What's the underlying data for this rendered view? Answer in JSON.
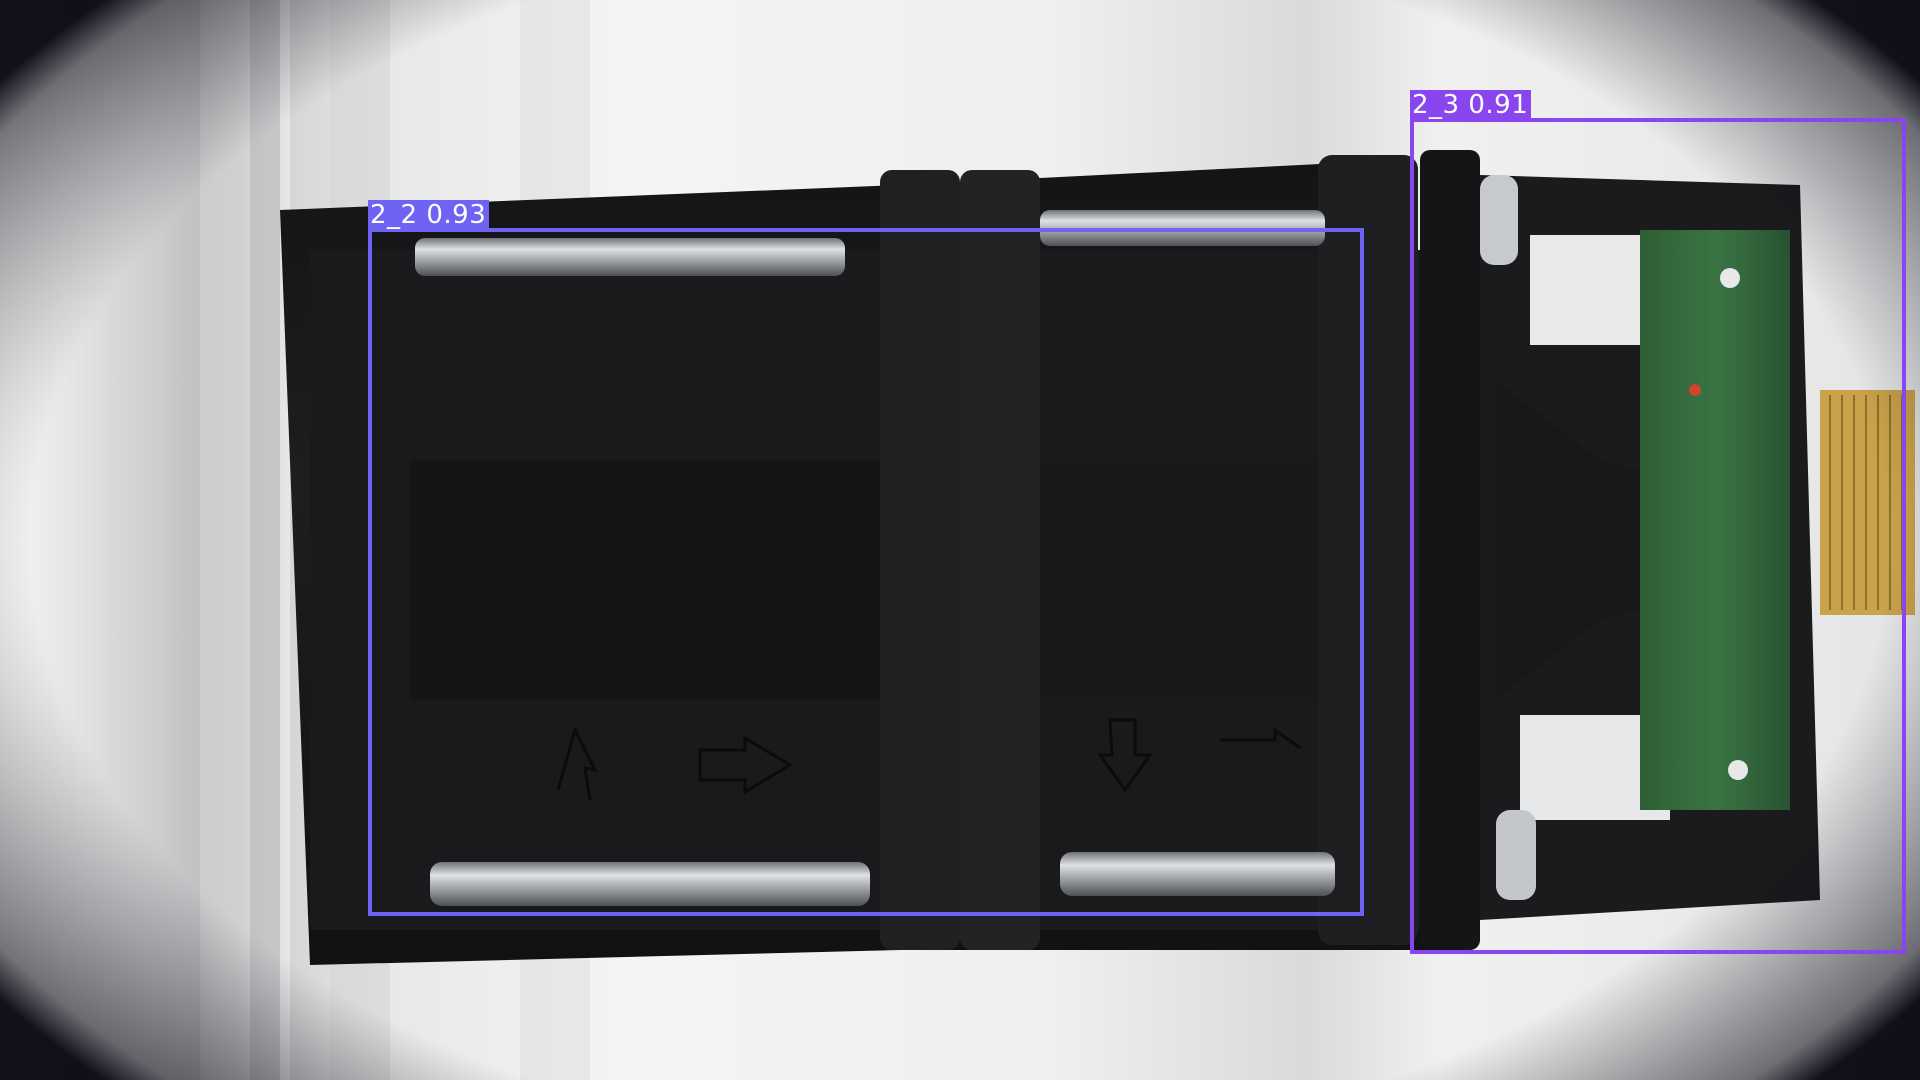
{
  "image": {
    "description_hidden": true
  },
  "detections": [
    {
      "class_label": "2_2",
      "score": "0.93",
      "color": "#6e63f2"
    },
    {
      "class_label": "2_3",
      "score": "0.91",
      "color": "#8a46ee"
    }
  ],
  "colors": {
    "background": "#d9dadb",
    "fan_body": "#1c1c1e",
    "rod": "#b8bcc2",
    "pcb": "#2f6a3a",
    "connector": "#c9a24a"
  }
}
